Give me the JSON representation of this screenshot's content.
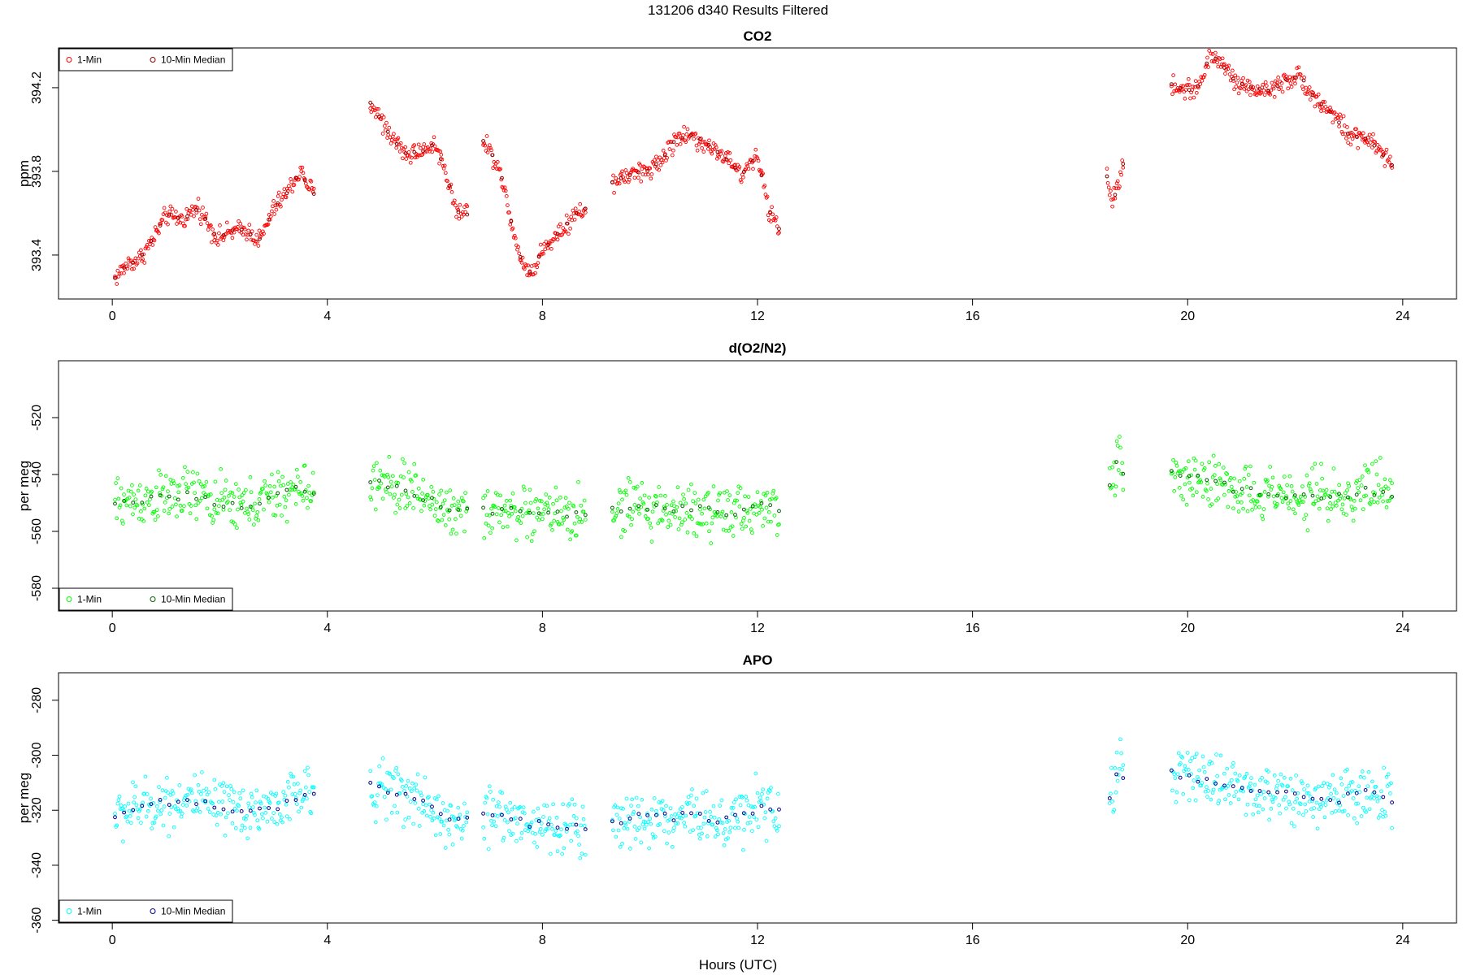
{
  "figure": {
    "title": "131206   d340   Results Filtered",
    "xlabel": "Hours (UTC)"
  },
  "chart_data": [
    {
      "type": "scatter",
      "title": "CO2",
      "xlabel": "",
      "ylabel": "ppm",
      "xlim": [
        -1.0,
        25.0
      ],
      "ylim": [
        393.19,
        394.39
      ],
      "xticks": [
        0,
        4,
        8,
        12,
        16,
        20,
        24
      ],
      "yticks": [
        393.4,
        393.8,
        394.2
      ],
      "ytick_labels": [
        "393.4",
        "393.8",
        "394.2"
      ],
      "legend": {
        "position": "top-left",
        "entries": [
          "1-Min",
          "10-Min Median"
        ]
      },
      "colors": {
        "one_min": "#ff0000",
        "median": "#8b0000"
      },
      "spread": 0.035,
      "segments": [
        {
          "x": [
            0.05,
            0.3,
            0.5,
            0.75,
            1.0,
            1.3,
            1.6,
            1.95,
            2.2,
            2.5,
            2.75,
            3.0,
            3.25,
            3.5,
            3.75
          ],
          "y": [
            393.29,
            393.36,
            393.38,
            393.47,
            393.59,
            393.57,
            393.63,
            393.48,
            393.51,
            393.52,
            393.47,
            393.62,
            393.7,
            393.8,
            393.69
          ]
        },
        {
          "x": [
            4.8,
            5.0,
            5.2,
            5.5,
            5.8,
            6.0,
            6.2,
            6.4,
            6.6
          ],
          "y": [
            394.13,
            394.05,
            393.96,
            393.88,
            393.9,
            393.94,
            393.8,
            393.61,
            393.6
          ]
        },
        {
          "x": [
            6.9,
            7.2,
            7.4,
            7.6,
            7.8,
            8.0,
            8.3,
            8.6,
            8.8
          ],
          "y": [
            393.95,
            393.82,
            393.58,
            393.38,
            393.31,
            393.42,
            393.51,
            393.59,
            393.62
          ]
        },
        {
          "x": [
            9.3,
            9.6,
            9.9,
            10.2,
            10.5,
            10.8,
            11.1,
            11.4,
            11.7,
            12.0,
            12.2,
            12.4
          ],
          "y": [
            393.75,
            393.78,
            393.8,
            393.85,
            393.96,
            393.97,
            393.92,
            393.87,
            393.78,
            393.88,
            393.62,
            393.53
          ]
        },
        {
          "x": [
            18.5,
            18.6,
            18.7,
            18.8
          ],
          "y": [
            393.78,
            393.66,
            393.72,
            393.83
          ]
        },
        {
          "x": [
            19.7,
            19.9,
            20.2,
            20.4,
            20.6,
            20.9,
            21.2,
            21.5,
            21.8,
            22.1,
            22.4,
            22.7,
            23.0,
            23.3,
            23.6,
            23.8
          ],
          "y": [
            394.22,
            394.19,
            394.2,
            394.35,
            394.33,
            394.22,
            394.2,
            394.18,
            394.24,
            394.25,
            394.14,
            394.08,
            393.97,
            393.96,
            393.89,
            393.83
          ]
        }
      ]
    },
    {
      "type": "scatter",
      "title": "d(O2/N2)",
      "xlabel": "",
      "ylabel": "per meg",
      "xlim": [
        -1.0,
        25.0
      ],
      "ylim": [
        -588,
        -500
      ],
      "xticks": [
        0,
        4,
        8,
        12,
        16,
        20,
        24
      ],
      "yticks": [
        -580,
        -560,
        -540,
        -520
      ],
      "ytick_labels": [
        "-580",
        "-560",
        "-540",
        "-520"
      ],
      "legend": {
        "position": "bottom-left",
        "entries": [
          "1-Min",
          "10-Min Median"
        ]
      },
      "colors": {
        "one_min": "#00ff00",
        "median": "#006400"
      },
      "spread": 7,
      "segments": [
        {
          "x": [
            0.05,
            0.5,
            1.0,
            1.5,
            2.0,
            2.5,
            3.0,
            3.5,
            3.75
          ],
          "y": [
            -550,
            -549,
            -548,
            -547,
            -550,
            -551,
            -548,
            -545,
            -546
          ]
        },
        {
          "x": [
            4.8,
            5.2,
            5.6,
            6.0,
            6.3,
            6.6
          ],
          "y": [
            -543,
            -544,
            -546,
            -550,
            -553,
            -552
          ]
        },
        {
          "x": [
            6.9,
            7.3,
            7.7,
            8.1,
            8.5,
            8.8
          ],
          "y": [
            -553,
            -552,
            -554,
            -553,
            -555,
            -554
          ]
        },
        {
          "x": [
            9.3,
            9.7,
            10.1,
            10.5,
            10.9,
            11.3,
            11.7,
            12.1,
            12.4
          ],
          "y": [
            -553,
            -552,
            -552,
            -553,
            -551,
            -555,
            -553,
            -551,
            -553
          ]
        },
        {
          "x": [
            18.55,
            18.65,
            18.75,
            18.8
          ],
          "y": [
            -545,
            -538,
            -533,
            -540
          ]
        },
        {
          "x": [
            19.7,
            20.1,
            20.5,
            20.9,
            21.3,
            21.7,
            22.1,
            22.5,
            22.9,
            23.3,
            23.8
          ],
          "y": [
            -540,
            -541,
            -543,
            -545,
            -546,
            -547,
            -548,
            -547,
            -548,
            -546,
            -547
          ]
        }
      ]
    },
    {
      "type": "scatter",
      "title": "APO",
      "xlabel": "Hours (UTC)",
      "ylabel": "per meg",
      "xlim": [
        -1.0,
        25.0
      ],
      "ylim": [
        -361,
        -270
      ],
      "xticks": [
        0,
        4,
        8,
        12,
        16,
        20,
        24
      ],
      "yticks": [
        -360,
        -340,
        -320,
        -300,
        -280
      ],
      "ytick_labels": [
        "-360",
        "-340",
        "-320",
        "-300",
        "-280"
      ],
      "legend": {
        "position": "bottom-left",
        "entries": [
          "1-Min",
          "10-Min Median"
        ]
      },
      "colors": {
        "one_min": "#00ffff",
        "median": "#00008b"
      },
      "spread": 7.5,
      "segments": [
        {
          "x": [
            0.05,
            0.5,
            1.0,
            1.5,
            2.0,
            2.5,
            3.0,
            3.5,
            3.75
          ],
          "y": [
            -322,
            -319,
            -317,
            -316,
            -320,
            -320,
            -319,
            -314,
            -315
          ]
        },
        {
          "x": [
            4.8,
            5.2,
            5.6,
            6.0,
            6.3,
            6.6
          ],
          "y": [
            -311,
            -313,
            -315,
            -320,
            -324,
            -324
          ]
        },
        {
          "x": [
            6.9,
            7.3,
            7.7,
            8.1,
            8.5,
            8.8
          ],
          "y": [
            -322,
            -321,
            -325,
            -325,
            -327,
            -326
          ]
        },
        {
          "x": [
            9.3,
            9.7,
            10.1,
            10.5,
            10.9,
            11.3,
            11.7,
            12.1,
            12.4
          ],
          "y": [
            -324,
            -323,
            -322,
            -323,
            -320,
            -325,
            -322,
            -318,
            -321
          ]
        },
        {
          "x": [
            18.55,
            18.65,
            18.75,
            18.8
          ],
          "y": [
            -316,
            -310,
            -302,
            -307
          ]
        },
        {
          "x": [
            19.7,
            20.1,
            20.5,
            20.9,
            21.3,
            21.7,
            22.1,
            22.5,
            22.9,
            23.3,
            23.8
          ],
          "y": [
            -307,
            -308,
            -310,
            -312,
            -313,
            -314,
            -315,
            -315,
            -316,
            -313,
            -316
          ]
        }
      ]
    }
  ]
}
